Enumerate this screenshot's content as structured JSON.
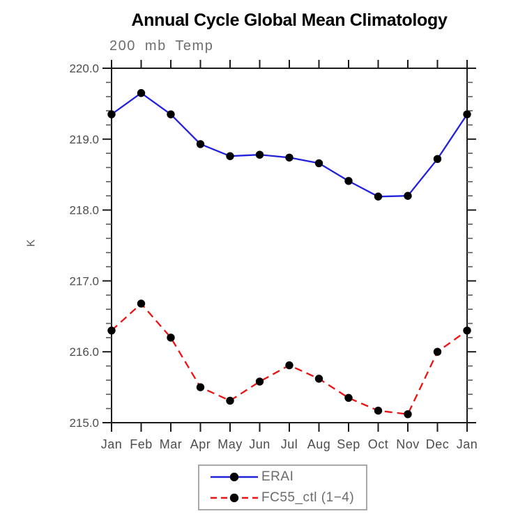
{
  "chart_data": {
    "type": "line",
    "title": "Annual Cycle Global Mean Climatology",
    "subtitle": "200 mb Temp",
    "ylabel": "K",
    "xlabel": "",
    "categories": [
      "Jan",
      "Feb",
      "Mar",
      "Apr",
      "May",
      "Jun",
      "Jul",
      "Aug",
      "Sep",
      "Oct",
      "Nov",
      "Dec",
      "Jan"
    ],
    "ylim": [
      215.0,
      220.0
    ],
    "y_ticks": [
      215.0,
      216.0,
      217.0,
      218.0,
      219.0,
      220.0
    ],
    "y_tick_labels": [
      "215.0",
      "216.0",
      "217.0",
      "218.0",
      "219.0",
      "220.0"
    ],
    "minor_tick_step": 0.2,
    "grid": false,
    "legend_position": "bottom-center",
    "axis_color": "#1a1a1a",
    "minor_tick_color": "#5a5a5a",
    "tick_label_color": "#4d4d4d",
    "series": [
      {
        "name": "ERAI",
        "color": "#2222dd",
        "line_style": "solid",
        "marker": "filled-circle",
        "marker_color": "#000000",
        "values": [
          219.35,
          219.65,
          219.35,
          218.93,
          218.76,
          218.78,
          218.74,
          218.66,
          218.41,
          218.19,
          218.2,
          218.72,
          219.35
        ]
      },
      {
        "name": "FC55_ctl (1−4)",
        "color": "#ee1111",
        "line_style": "dashed",
        "marker": "filled-circle",
        "marker_color": "#000000",
        "values": [
          216.3,
          216.68,
          216.2,
          215.5,
          215.31,
          215.58,
          215.81,
          215.62,
          215.35,
          215.17,
          215.12,
          216.0,
          216.3
        ]
      }
    ]
  }
}
